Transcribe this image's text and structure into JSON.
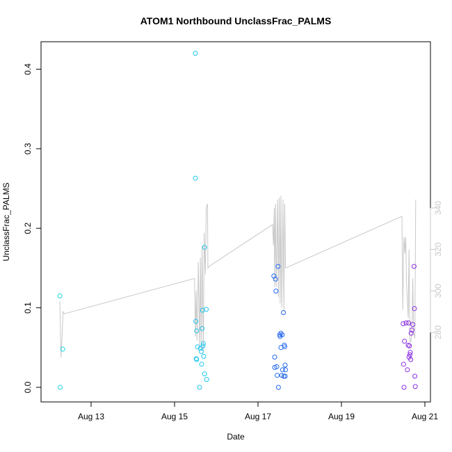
{
  "chart_data": {
    "type": "scatter",
    "title": "ATOM1 Northbound UnclassFrac_PALMS",
    "xlabel": "Date",
    "ylabel": "UnclassFrac_PALMS",
    "x_ticks": [
      "Aug 13",
      "Aug 15",
      "Aug 17",
      "Aug 19",
      "Aug 21"
    ],
    "y_ticks": [
      "0.0",
      "0.1",
      "0.2",
      "0.3",
      "0.4"
    ],
    "y2_ticks": [
      "280",
      "300",
      "320",
      "340"
    ],
    "colors": {
      "line": "#c8c8c8",
      "axis": "#000000",
      "secondary_axis": "#c8c8c8",
      "point_early": "#1ad9e6",
      "point_mid": "#2266ee",
      "point_late": "#8a2be2"
    },
    "points": [
      {
        "day": 12.25,
        "y": 0.115
      },
      {
        "day": 12.26,
        "y": 0.0
      },
      {
        "day": 12.32,
        "y": 0.048
      },
      {
        "day": 15.5,
        "y": 0.42
      },
      {
        "day": 15.5,
        "y": 0.263
      },
      {
        "day": 15.51,
        "y": 0.083
      },
      {
        "day": 15.53,
        "y": 0.071
      },
      {
        "day": 15.52,
        "y": 0.036
      },
      {
        "day": 15.53,
        "y": 0.035
      },
      {
        "day": 15.55,
        "y": 0.051
      },
      {
        "day": 15.6,
        "y": 0.0
      },
      {
        "day": 15.62,
        "y": 0.049
      },
      {
        "day": 15.64,
        "y": 0.045
      },
      {
        "day": 15.65,
        "y": 0.029
      },
      {
        "day": 15.66,
        "y": 0.074
      },
      {
        "day": 15.67,
        "y": 0.097
      },
      {
        "day": 15.68,
        "y": 0.052
      },
      {
        "day": 15.69,
        "y": 0.055
      },
      {
        "day": 15.7,
        "y": 0.039
      },
      {
        "day": 15.72,
        "y": 0.176
      },
      {
        "day": 15.72,
        "y": 0.017
      },
      {
        "day": 15.76,
        "y": 0.098
      },
      {
        "day": 15.77,
        "y": 0.01
      },
      {
        "day": 17.38,
        "y": 0.14
      },
      {
        "day": 17.4,
        "y": 0.025
      },
      {
        "day": 17.4,
        "y": 0.038
      },
      {
        "day": 17.42,
        "y": 0.136
      },
      {
        "day": 17.43,
        "y": 0.121
      },
      {
        "day": 17.45,
        "y": 0.026
      },
      {
        "day": 17.46,
        "y": 0.015
      },
      {
        "day": 17.48,
        "y": 0.152
      },
      {
        "day": 17.49,
        "y": 0.0
      },
      {
        "day": 17.52,
        "y": 0.066
      },
      {
        "day": 17.53,
        "y": 0.064
      },
      {
        "day": 17.55,
        "y": 0.068
      },
      {
        "day": 17.55,
        "y": 0.05
      },
      {
        "day": 17.57,
        "y": 0.015
      },
      {
        "day": 17.58,
        "y": 0.066
      },
      {
        "day": 17.59,
        "y": 0.022
      },
      {
        "day": 17.61,
        "y": 0.094
      },
      {
        "day": 17.62,
        "y": 0.014
      },
      {
        "day": 17.63,
        "y": 0.053
      },
      {
        "day": 17.64,
        "y": 0.051
      },
      {
        "day": 17.65,
        "y": 0.028
      },
      {
        "day": 17.65,
        "y": 0.014
      },
      {
        "day": 17.66,
        "y": 0.022
      },
      {
        "day": 20.48,
        "y": 0.08
      },
      {
        "day": 20.49,
        "y": 0.029
      },
      {
        "day": 20.5,
        "y": 0.0
      },
      {
        "day": 20.51,
        "y": 0.058
      },
      {
        "day": 20.55,
        "y": 0.081
      },
      {
        "day": 20.58,
        "y": 0.022
      },
      {
        "day": 20.6,
        "y": 0.053
      },
      {
        "day": 20.61,
        "y": 0.081
      },
      {
        "day": 20.62,
        "y": 0.038
      },
      {
        "day": 20.63,
        "y": 0.052
      },
      {
        "day": 20.64,
        "y": 0.041
      },
      {
        "day": 20.65,
        "y": 0.044
      },
      {
        "day": 20.66,
        "y": 0.035
      },
      {
        "day": 20.67,
        "y": 0.068
      },
      {
        "day": 20.69,
        "y": 0.072
      },
      {
        "day": 20.71,
        "y": 0.079
      },
      {
        "day": 20.74,
        "y": 0.152
      },
      {
        "day": 20.75,
        "y": 0.099
      },
      {
        "day": 20.76,
        "y": 0.014
      },
      {
        "day": 20.77,
        "y": 0.001
      }
    ],
    "secondary_line": [
      [
        12.25,
        295
      ],
      [
        12.28,
        268
      ],
      [
        12.33,
        290
      ],
      [
        12.36,
        289
      ],
      [
        15.48,
        306
      ],
      [
        15.5,
        278
      ],
      [
        15.52,
        300
      ],
      [
        15.54,
        276
      ],
      [
        15.57,
        314
      ],
      [
        15.6,
        272
      ],
      [
        15.62,
        316
      ],
      [
        15.64,
        272
      ],
      [
        15.66,
        322
      ],
      [
        15.69,
        270
      ],
      [
        15.71,
        328
      ],
      [
        15.74,
        308
      ],
      [
        15.76,
        340
      ],
      [
        15.79,
        342
      ],
      [
        15.8,
        311
      ],
      [
        15.84,
        312
      ],
      [
        17.35,
        332
      ],
      [
        17.37,
        322
      ],
      [
        17.39,
        340
      ],
      [
        17.4,
        302
      ],
      [
        17.42,
        342
      ],
      [
        17.44,
        302
      ],
      [
        17.47,
        344
      ],
      [
        17.49,
        297
      ],
      [
        17.51,
        345
      ],
      [
        17.53,
        294
      ],
      [
        17.55,
        346
      ],
      [
        17.57,
        292
      ],
      [
        17.6,
        344
      ],
      [
        17.62,
        290
      ],
      [
        17.64,
        342
      ],
      [
        17.66,
        311
      ],
      [
        20.45,
        336
      ],
      [
        20.47,
        291
      ],
      [
        20.49,
        320
      ],
      [
        20.5,
        326
      ],
      [
        20.52,
        318
      ],
      [
        20.54,
        326
      ],
      [
        20.56,
        304
      ],
      [
        20.6,
        287
      ],
      [
        20.62,
        320
      ],
      [
        20.64,
        276
      ],
      [
        20.66,
        275
      ],
      [
        20.69,
        280
      ],
      [
        20.71,
        306
      ],
      [
        20.73,
        280
      ],
      [
        20.76,
        277
      ],
      [
        20.78,
        344
      ]
    ]
  }
}
